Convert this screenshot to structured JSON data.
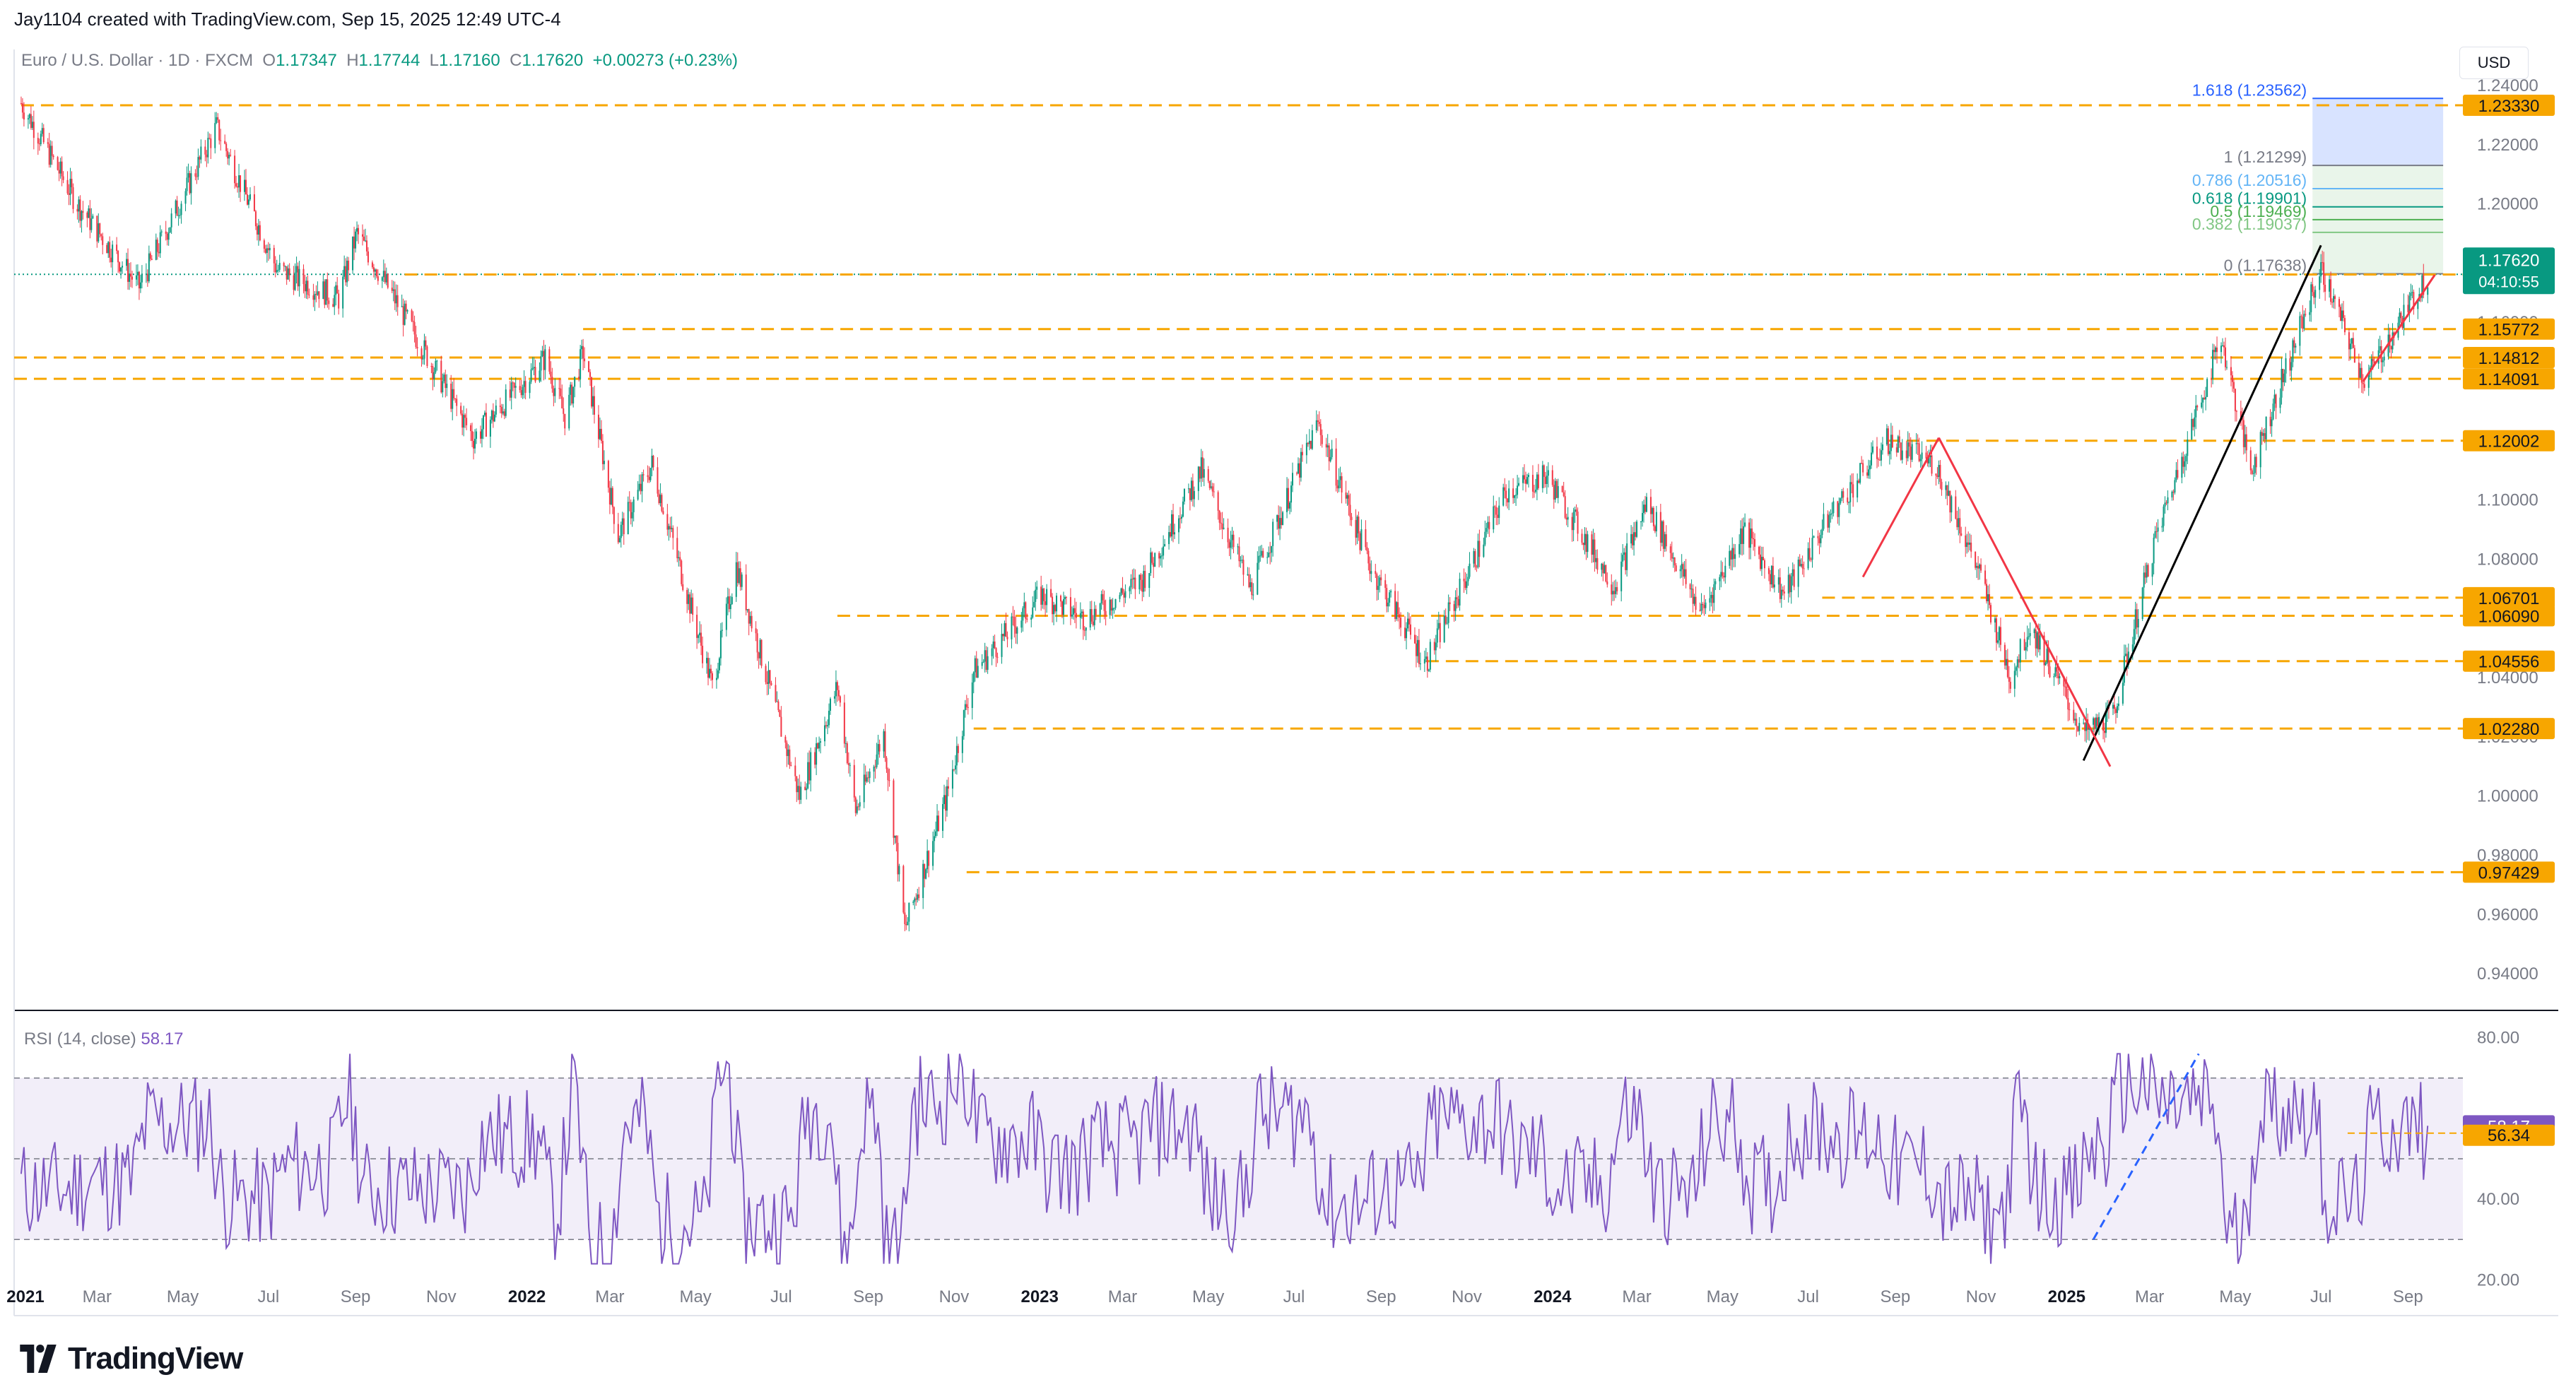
{
  "header": {
    "created_by": "Jay1104 created with TradingView.com, Sep 15, 2025 12:49 UTC-4"
  },
  "symbol_line": {
    "name": "Euro / U.S. Dollar · 1D · FXCM",
    "o_label": "O",
    "o": "1.17347",
    "h_label": "H",
    "h": "1.17744",
    "l_label": "L",
    "l": "1.17160",
    "c_label": "C",
    "c": "1.17620",
    "change": "+0.00273 (+0.23%)"
  },
  "currency_button": "USD",
  "brand": "TradingView",
  "colors": {
    "up": "#089981",
    "down": "#f23645",
    "level_line": "#f7a600",
    "rsi_line": "#7e57c2",
    "rsi_band": "#ede7f6",
    "trend_black": "#000000",
    "trend_red": "#f23645",
    "rsi_trend_blue": "#2962ff"
  },
  "chart_data": [
    {
      "type": "candlestick",
      "title": "Euro / U.S. Dollar · 1D · FXCM",
      "ylim": [
        0.93,
        1.245
      ],
      "y_ticks": [
        "1.24000",
        "1.22000",
        "1.20000",
        "1.18000",
        "1.16000",
        "1.14000",
        "1.12000",
        "1.10000",
        "1.08000",
        "1.06000",
        "1.04000",
        "1.02000",
        "1.00000",
        "0.98000",
        "0.96000",
        "0.94000"
      ],
      "x_tick_labels": [
        "2021",
        "Mar",
        "May",
        "Jul",
        "Sep",
        "Nov",
        "2022",
        "Mar",
        "May",
        "Jul",
        "Sep",
        "Nov",
        "2023",
        "Mar",
        "May",
        "Jul",
        "Sep",
        "Nov",
        "2024",
        "Mar",
        "May",
        "Jul",
        "Sep",
        "Nov",
        "2025",
        "Mar",
        "May",
        "Jul",
        "Sep"
      ],
      "price_path_x": [
        "2021-01-06",
        "2021-02-15",
        "2021-03-31",
        "2021-05-25",
        "2021-07-07",
        "2021-08-20",
        "2021-09-02",
        "2021-10-12",
        "2021-11-24",
        "2022-01-14",
        "2022-01-28",
        "2022-02-10",
        "2022-03-07",
        "2022-03-31",
        "2022-05-13",
        "2022-05-30",
        "2022-07-14",
        "2022-08-10",
        "2022-08-23",
        "2022-09-12",
        "2022-09-27",
        "2022-10-27",
        "2022-11-15",
        "2023-01-02",
        "2023-02-02",
        "2023-03-15",
        "2023-04-26",
        "2023-05-31",
        "2023-07-18",
        "2023-08-25",
        "2023-10-03",
        "2023-11-29",
        "2023-12-28",
        "2024-02-14",
        "2024-03-08",
        "2024-04-16",
        "2024-05-16",
        "2024-06-14",
        "2024-07-17",
        "2024-08-26",
        "2024-09-30",
        "2024-10-31",
        "2024-11-22",
        "2024-12-06",
        "2025-01-13",
        "2025-02-03",
        "2025-03-04",
        "2025-04-21",
        "2025-05-12",
        "2025-07-01",
        "2025-08-01",
        "2025-09-15"
      ],
      "price_path_y": [
        1.234,
        1.2,
        1.172,
        1.226,
        1.178,
        1.168,
        1.19,
        1.157,
        1.121,
        1.148,
        1.128,
        1.15,
        1.088,
        1.112,
        1.037,
        1.078,
        1.0,
        1.037,
        0.995,
        1.021,
        0.955,
        1.0,
        1.042,
        1.068,
        1.06,
        1.073,
        1.11,
        1.07,
        1.126,
        1.077,
        1.045,
        1.103,
        1.108,
        1.071,
        1.099,
        1.062,
        1.09,
        1.068,
        1.095,
        1.12,
        1.112,
        1.075,
        1.04,
        1.058,
        1.021,
        1.027,
        1.085,
        1.155,
        1.11,
        1.178,
        1.14,
        1.1762
      ],
      "last_price": 1.1762,
      "last_price_label": "1.17620",
      "countdown_label": "04:10:55",
      "levels": [
        {
          "label": "1.23330",
          "value": 1.2333,
          "from": "2021-01-06"
        },
        {
          "label": "1.17615",
          "value": 1.17615,
          "from": "2021-10-06"
        },
        {
          "label": "1.15772",
          "value": 1.15772,
          "from": "2022-02-10"
        },
        {
          "label": "1.14812",
          "value": 1.14812
        },
        {
          "label": "1.14091",
          "value": 1.14091
        },
        {
          "label": "1.12002",
          "value": 1.12002,
          "from": "2024-08-26"
        },
        {
          "label": "1.06701",
          "value": 1.06701,
          "from": "2024-07-11"
        },
        {
          "label": "1.06090",
          "value": 1.0609,
          "from": "2022-08-10"
        },
        {
          "label": "1.04556",
          "value": 1.04556,
          "from": "2023-10-03"
        },
        {
          "label": "1.02280",
          "value": 1.0228,
          "from": "2022-11-15"
        },
        {
          "label": "0.97429",
          "value": 0.97429,
          "from": "2022-11-10"
        }
      ],
      "fibonacci": [
        {
          "label": "1.618 (1.23562)",
          "value": 1.23562,
          "color": "#2962ff"
        },
        {
          "label": "1 (1.21299)",
          "value": 1.21299,
          "color": "#787b86"
        },
        {
          "label": "0.786 (1.20516)",
          "value": 1.20516,
          "color": "#64b5f6"
        },
        {
          "label": "0.618 (1.19901)",
          "value": 1.19901,
          "color": "#089981"
        },
        {
          "label": "0.5 (1.19469)",
          "value": 1.19469,
          "color": "#4caf50"
        },
        {
          "label": "0.382 (1.19037)",
          "value": 1.19037,
          "color": "#81c784"
        },
        {
          "label": "0 (1.17638)",
          "value": 1.17638,
          "color": "#787b86"
        }
      ],
      "trendlines": [
        {
          "color": "#000000",
          "from": {
            "x": "2025-01-13",
            "y": 1.012
          },
          "to": {
            "x": "2025-07-01",
            "y": 1.186
          }
        },
        {
          "color": "#f23645",
          "from": {
            "x": "2024-08-09",
            "y": 1.074
          },
          "to": {
            "x": "2024-10-02",
            "y": 1.121
          }
        },
        {
          "color": "#f23645",
          "from": {
            "x": "2024-10-02",
            "y": 1.121
          },
          "to": {
            "x": "2025-02-01",
            "y": 1.01
          }
        },
        {
          "color": "#f23645",
          "from": {
            "x": "2025-07-31",
            "y": 1.14
          },
          "to": {
            "x": "2025-09-20",
            "y": 1.176
          }
        }
      ]
    },
    {
      "type": "line",
      "title": "RSI (14, close)",
      "value_label": "58.17",
      "value": 58.17,
      "signal_label": "56.34",
      "signal": 56.34,
      "ylim": [
        15,
        85
      ],
      "y_ticks": [
        "80.00",
        "40.00",
        "20.00"
      ],
      "band": [
        30,
        70
      ],
      "mid": 50
    }
  ]
}
